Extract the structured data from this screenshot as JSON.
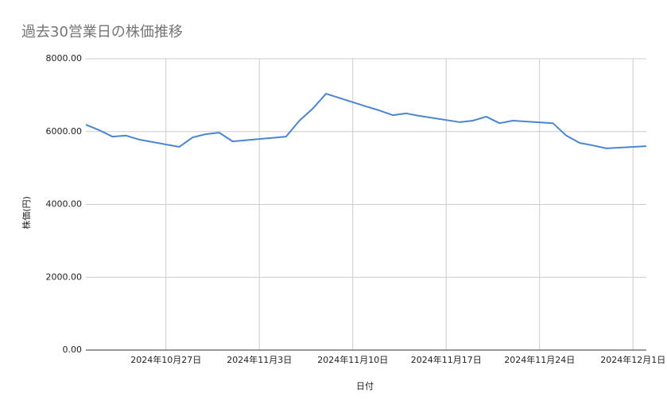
{
  "chart_data": {
    "type": "line",
    "title": "過去30営業日の株価推移",
    "x_label": "日付",
    "y_label": "株価(円)",
    "x": [
      "2024-10-21",
      "2024-10-22",
      "2024-10-23",
      "2024-10-24",
      "2024-10-25",
      "2024-10-28",
      "2024-10-29",
      "2024-10-30",
      "2024-10-31",
      "2024-11-01",
      "2024-11-05",
      "2024-11-06",
      "2024-11-07",
      "2024-11-08",
      "2024-11-11",
      "2024-11-12",
      "2024-11-13",
      "2024-11-14",
      "2024-11-15",
      "2024-11-18",
      "2024-11-19",
      "2024-11-20",
      "2024-11-21",
      "2024-11-22",
      "2024-11-25",
      "2024-11-26",
      "2024-11-27",
      "2024-11-28",
      "2024-11-29",
      "2024-12-02"
    ],
    "series": [
      {
        "name": "株価(円)",
        "color": "#4a86d0",
        "values": [
          6190,
          6040,
          5860,
          5890,
          5780,
          5580,
          5840,
          5930,
          5970,
          5730,
          5860,
          6300,
          6630,
          7040,
          6690,
          6580,
          6450,
          6500,
          6430,
          6260,
          6300,
          6410,
          6230,
          6300,
          6230,
          5890,
          5690,
          5620,
          5540,
          5600
        ]
      }
    ],
    "xlim": [
      "2024-10-21",
      "2024-12-02"
    ],
    "xticks": [
      {
        "value": "2024-10-27",
        "label": "2024年10月27日"
      },
      {
        "value": "2024-11-03",
        "label": "2024年11月3日"
      },
      {
        "value": "2024-11-10",
        "label": "2024年11月10日"
      },
      {
        "value": "2024-11-17",
        "label": "2024年11月17日"
      },
      {
        "value": "2024-11-24",
        "label": "2024年11月24日"
      },
      {
        "value": "2024-12-01",
        "label": "2024年12月1日"
      }
    ],
    "ylim": [
      0,
      8000
    ],
    "yticks": [
      {
        "value": 0,
        "label": "0.00"
      },
      {
        "value": 2000,
        "label": "2000.00"
      },
      {
        "value": 4000,
        "label": "4000.00"
      },
      {
        "value": 6000,
        "label": "6000.00"
      },
      {
        "value": 8000,
        "label": "8000.00"
      }
    ],
    "grid": true
  }
}
